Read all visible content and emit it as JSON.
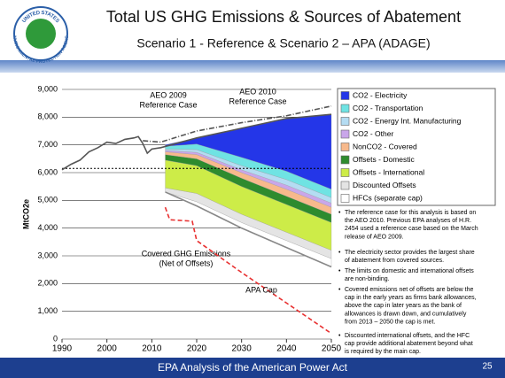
{
  "header": {
    "title": "Total US GHG Emissions & Sources of Abatement",
    "subtitle": "Scenario 1 - Reference & Scenario 2 – APA (ADAGE)",
    "logo_top": "UNITED STATES",
    "logo_bottom": "ENVIRONMENTAL PROTECTION AGENCY"
  },
  "chart_data": {
    "type": "area",
    "y_label": "MtCO2e",
    "xlim": [
      1990,
      2050
    ],
    "xticks": [
      1990,
      2000,
      2010,
      2020,
      2030,
      2040,
      2050
    ],
    "ylim": [
      0,
      9000
    ],
    "yticks": [
      0,
      {
        "value": 1000,
        "label": "1,000"
      },
      {
        "value": 2000,
        "label": "2,000"
      },
      {
        "value": 3000,
        "label": "3,000"
      },
      {
        "value": 4000,
        "label": "4,000"
      },
      {
        "value": 5000,
        "label": "5,000"
      },
      {
        "value": 6000,
        "label": "6,000"
      },
      {
        "value": 7000,
        "label": "7,000"
      },
      {
        "value": 8000,
        "label": "8,000"
      },
      {
        "value": 9000,
        "label": "9,000"
      }
    ],
    "grid": true,
    "hline": 6150,
    "stack_x": [
      2013,
      2020,
      2030,
      2040,
      2050
    ],
    "series": [
      {
        "name": "CO2 - Electricity",
        "color": "#2436e8",
        "values": [
          50,
          220,
          1050,
          1900,
          2700
        ]
      },
      {
        "name": "CO2 - Transportation",
        "color": "#6fe3e3",
        "values": [
          100,
          200,
          300,
          300,
          300
        ]
      },
      {
        "name": "CO2 - Energy Int. Manufacturing",
        "color": "#b4dcf2",
        "values": [
          50,
          100,
          150,
          200,
          200
        ]
      },
      {
        "name": "CO2 - Other",
        "color": "#c9a6ea",
        "values": [
          50,
          80,
          100,
          150,
          150
        ]
      },
      {
        "name": "NonCO2 - Covered",
        "color": "#f7b98c",
        "values": [
          100,
          150,
          200,
          250,
          250
        ]
      },
      {
        "name": "Offsets - Domestic",
        "color": "#2e8b2e",
        "values": [
          200,
          250,
          300,
          300,
          300
        ]
      },
      {
        "name": "Offsets - International",
        "color": "#cdec48",
        "values": [
          1000,
          1000,
          1000,
          1000,
          1000
        ]
      },
      {
        "name": "Discounted Offsets",
        "color": "#e4e4e4",
        "values": [
          150,
          300,
          300,
          300,
          300
        ]
      },
      {
        "name": "HFCs (separate cap)",
        "color": "#ffffff",
        "values": [
          0,
          150,
          200,
          250,
          300
        ]
      }
    ],
    "lines": [
      {
        "label": [
          "AEO 2009",
          "Reference Case"
        ],
        "color": "#555555",
        "style": "dashdot",
        "x": [
          2008,
          2012,
          2020,
          2030,
          2040,
          2050
        ],
        "values": [
          7150,
          7100,
          7500,
          7800,
          8050,
          8400
        ]
      },
      {
        "label": [
          "AEO 2010",
          "Reference Case"
        ],
        "color": "#555555",
        "style": "solid",
        "x": [
          1990,
          1992,
          1994,
          1996,
          1998,
          2000,
          2002,
          2004,
          2006,
          2007,
          2008,
          2009,
          2010,
          2012,
          2020,
          2030,
          2040,
          2050
        ],
        "values": [
          6100,
          6300,
          6450,
          6750,
          6900,
          7100,
          7050,
          7200,
          7250,
          7300,
          7050,
          6700,
          6850,
          6900,
          7250,
          7600,
          7950,
          8100
        ]
      },
      {
        "label": [
          "Covered GHG Emissions",
          "(Net of Offsets)"
        ],
        "color": "#888888",
        "style": "solid",
        "x": [
          2013,
          2020,
          2030,
          2040,
          2050
        ],
        "values": [
          5300,
          4800,
          4000,
          3300,
          2600
        ]
      },
      {
        "label": [
          "APA Cap"
        ],
        "color": "#e83030",
        "style": "dashed",
        "x": [
          2013,
          2014,
          2019,
          2020,
          2030,
          2040,
          2050
        ],
        "values": [
          4750,
          4300,
          4250,
          3550,
          2400,
          1300,
          200
        ]
      }
    ]
  },
  "bullets": [
    [
      "The reference case for this analysis is based on",
      "the AEO 2010.  Previous EPA analyses of H.R.",
      "2454 used a reference case based on the March",
      "release of AEO 2009."
    ],
    [
      "The electricity sector provides the largest share",
      "of abatement from covered sources."
    ],
    [
      "The limits on domestic and international offsets",
      "are non-binding."
    ],
    [
      "Covered emissions net of offsets are below the",
      "cap in the early years as firms bank allowances,",
      "above the cap in later years as the bank of",
      "allowances is drawn down, and cumulatively",
      "from 2013 – 2050 the cap is met."
    ],
    [
      "Discounted international offsets, and the HFC",
      "cap provide additional abatement beyond what",
      "is required by the main cap."
    ]
  ],
  "footer": {
    "text": "EPA Analysis of the American Power Act",
    "page": "25"
  }
}
